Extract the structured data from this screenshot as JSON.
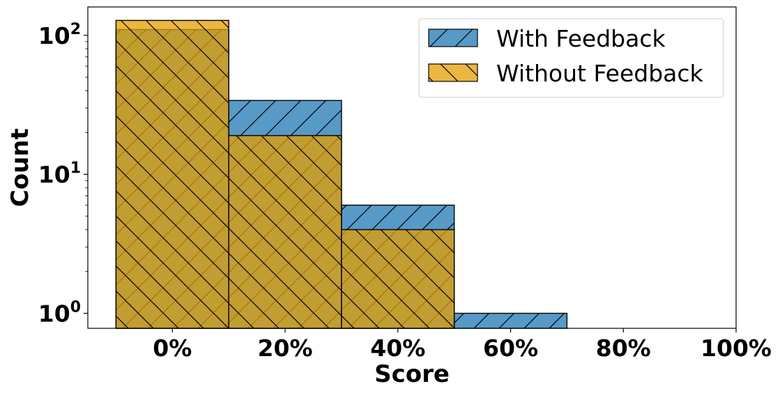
{
  "chart_data": {
    "type": "bar",
    "title": "",
    "xlabel": "Score",
    "ylabel": "Count",
    "y_scale": "log",
    "ylim": [
      0.78,
      160
    ],
    "xlim": [
      -0.15,
      1.0
    ],
    "bin_width": 0.2,
    "x_ticks": [
      {
        "value": 0.0,
        "label": "0%"
      },
      {
        "value": 0.2,
        "label": "20%"
      },
      {
        "value": 0.4,
        "label": "40%"
      },
      {
        "value": 0.6,
        "label": "60%"
      },
      {
        "value": 0.8,
        "label": "80%"
      },
      {
        "value": 1.0,
        "label": "100%"
      }
    ],
    "y_ticks": [
      {
        "value": 1,
        "base": "10",
        "exp": "0"
      },
      {
        "value": 10,
        "base": "10",
        "exp": "1"
      },
      {
        "value": 100,
        "base": "10",
        "exp": "2"
      }
    ],
    "grid": false,
    "legend_position": "top-right",
    "series": [
      {
        "name": "With Feedback",
        "color": "#1f77b4",
        "hatch": "forward-diagonal",
        "bins": [
          {
            "x": 0.0,
            "count": 110
          },
          {
            "x": 0.2,
            "count": 34
          },
          {
            "x": 0.4,
            "count": 6
          },
          {
            "x": 0.6,
            "count": 1
          }
        ]
      },
      {
        "name": "Without Feedback",
        "color": "#e69f00",
        "hatch": "back-diagonal",
        "bins": [
          {
            "x": 0.0,
            "count": 128
          },
          {
            "x": 0.2,
            "count": 19
          },
          {
            "x": 0.4,
            "count": 4
          }
        ]
      }
    ]
  }
}
